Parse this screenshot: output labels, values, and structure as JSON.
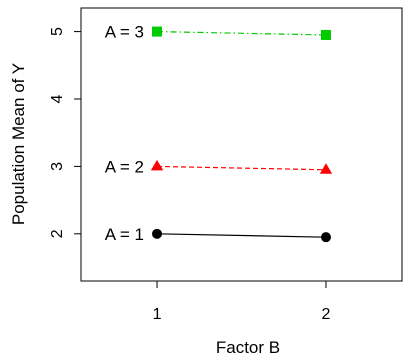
{
  "chart_data": {
    "type": "line",
    "xlabel": "Factor B",
    "ylabel": "Population Mean of Y",
    "x": [
      1,
      2
    ],
    "xlim": [
      0.55,
      2.45
    ],
    "ylim": [
      1.3,
      5.35
    ],
    "xticks": [
      1,
      2
    ],
    "yticks": [
      2,
      3,
      4,
      5
    ],
    "grid": false,
    "series": [
      {
        "name": "A = 1",
        "values": [
          2.0,
          1.95
        ],
        "color": "#000000",
        "marker": "circle",
        "linestyle": "solid"
      },
      {
        "name": "A = 2",
        "values": [
          3.0,
          2.95
        ],
        "color": "#ff0000",
        "marker": "triangle",
        "linestyle": "dashed"
      },
      {
        "name": "A = 3",
        "values": [
          5.0,
          4.95
        ],
        "color": "#00cc00",
        "marker": "square",
        "linestyle": "dashdot"
      }
    ]
  }
}
